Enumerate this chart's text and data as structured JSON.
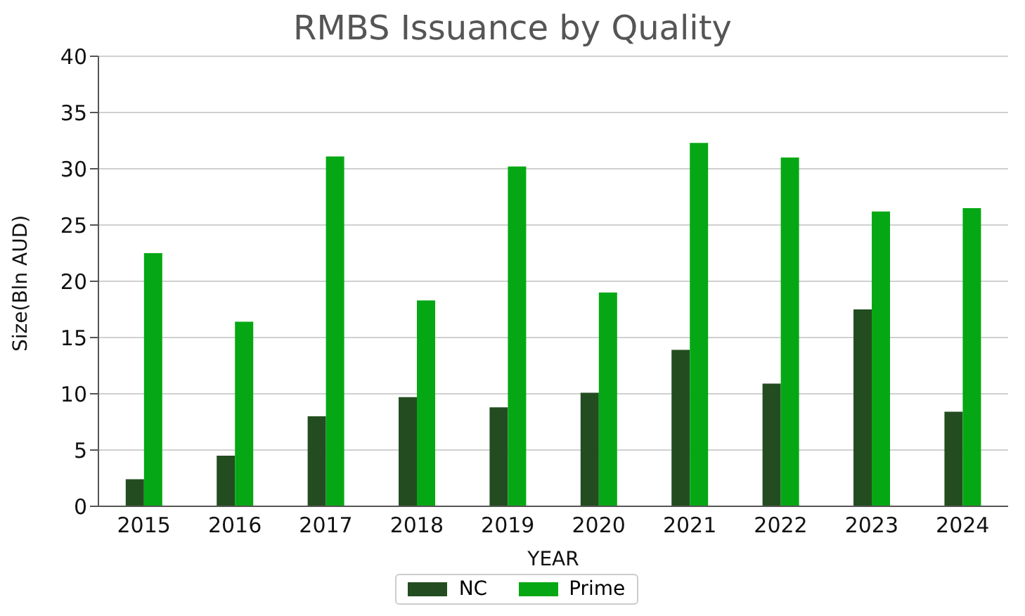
{
  "chart_data": {
    "type": "bar",
    "title": "RMBS Issuance by Quality",
    "xlabel": "YEAR",
    "ylabel": "Size(Bln AUD)",
    "categories": [
      "2015",
      "2016",
      "2017",
      "2018",
      "2019",
      "2020",
      "2021",
      "2022",
      "2023",
      "2024"
    ],
    "series": [
      {
        "name": "NC",
        "color": "#234d20",
        "values": [
          2.4,
          4.5,
          8.0,
          9.7,
          8.8,
          10.1,
          13.9,
          10.9,
          17.5,
          8.4
        ]
      },
      {
        "name": "Prime",
        "color": "#05a814",
        "values": [
          22.5,
          16.4,
          31.1,
          18.3,
          30.2,
          19.0,
          32.3,
          31.0,
          26.2,
          26.5
        ]
      }
    ],
    "ylim": [
      0,
      40
    ],
    "yticks": [
      0,
      5,
      10,
      15,
      20,
      25,
      30,
      35,
      40
    ],
    "grid": "y",
    "legend": "bottom"
  }
}
